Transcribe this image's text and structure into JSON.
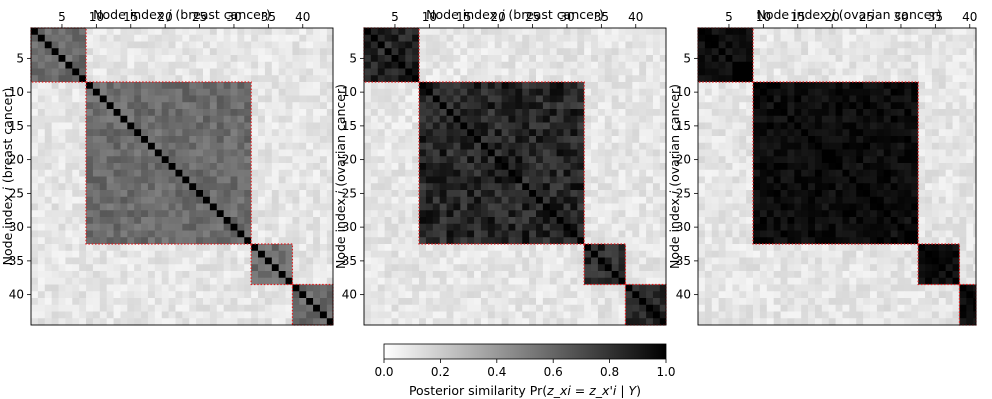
{
  "chart_data": [
    {
      "type": "heatmap",
      "xlabel_prefix": "Node index ",
      "xlabel_var": "j",
      "xlabel_suffix": " (breast cancer)",
      "ylabel_prefix": "Node index ",
      "ylabel_var": "i",
      "ylabel_suffix": " (breast cancer)",
      "ticks": [
        5,
        10,
        15,
        20,
        25,
        30,
        35,
        40
      ],
      "n": 44,
      "block_bounds": [
        8,
        32,
        38
      ],
      "off_diagonal_value": 0.58
    },
    {
      "type": "heatmap",
      "xlabel_prefix": "Node index ",
      "xlabel_var": "j",
      "xlabel_suffix": " (breast cancer)",
      "ylabel_prefix": "Node index ",
      "ylabel_var": "i",
      "ylabel_suffix": " (ovarian cancer)",
      "ticks": [
        5,
        10,
        15,
        20,
        25,
        30,
        35,
        40
      ],
      "n": 44,
      "block_bounds": [
        8,
        32,
        38
      ],
      "off_diagonal_value": 0.85
    },
    {
      "type": "heatmap",
      "xlabel_prefix": "Node index ",
      "xlabel_var": "j",
      "xlabel_suffix": " (ovarian cancer)",
      "ylabel_prefix": "Node index ",
      "ylabel_var": "i",
      "ylabel_suffix": " (ovarian cancer)",
      "ticks": [
        5,
        10,
        15,
        20,
        25,
        30,
        35,
        40
      ],
      "n": 44,
      "block_bounds": [
        8,
        32,
        38
      ],
      "off_diagonal_value": 0.95
    }
  ],
  "colorbar": {
    "label_prefix": "Posterior similarity Pr(",
    "label_expr": "z_xi = z_x'i | Y",
    "label_suffix": ")",
    "ticks": [
      0.0,
      0.2,
      0.4,
      0.6,
      0.8,
      1.0
    ],
    "tick_labels": [
      "0.0",
      "0.2",
      "0.4",
      "0.6",
      "0.8",
      "1.0"
    ],
    "range": [
      0,
      1
    ],
    "colormap": "gray_r"
  },
  "colors": {
    "block_border": "#e31a1c",
    "low": "#ffffff",
    "high": "#000000"
  }
}
